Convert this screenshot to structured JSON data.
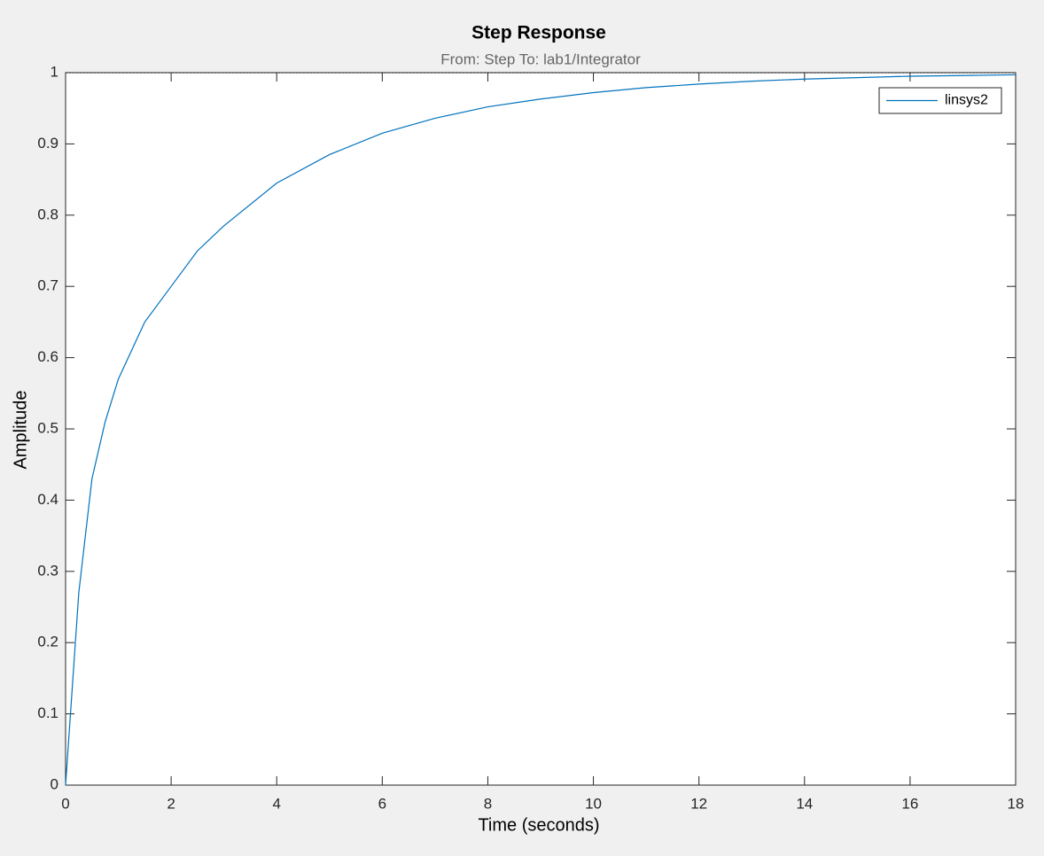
{
  "chart_data": {
    "type": "line",
    "title": "Step Response",
    "subtitle": "From: Step  To: lab1/Integrator",
    "xlabel": "Time (seconds)",
    "ylabel": "Amplitude",
    "x": [
      0,
      0.25,
      0.5,
      0.75,
      1,
      1.5,
      2,
      2.5,
      3,
      4,
      5,
      6,
      7,
      8,
      9,
      10,
      11,
      12,
      13,
      14,
      15,
      16,
      17,
      18
    ],
    "series": [
      {
        "name": "linsys2",
        "color": "#0072bd",
        "values": [
          0,
          0.27,
          0.43,
          0.51,
          0.57,
          0.65,
          0.7,
          0.75,
          0.785,
          0.845,
          0.885,
          0.915,
          0.936,
          0.952,
          0.963,
          0.972,
          0.979,
          0.984,
          0.988,
          0.991,
          0.993,
          0.995,
          0.996,
          0.997
        ]
      }
    ],
    "steady_state": 1,
    "xlim": [
      0,
      18
    ],
    "xticks": [
      0,
      2,
      4,
      6,
      8,
      10,
      12,
      14,
      16,
      18
    ],
    "ylim": [
      0,
      1
    ],
    "yticks": [
      0,
      0.1,
      0.2,
      0.3,
      0.4,
      0.5,
      0.6,
      0.7,
      0.8,
      0.9,
      1
    ],
    "legend": "top-right",
    "grid": false
  }
}
